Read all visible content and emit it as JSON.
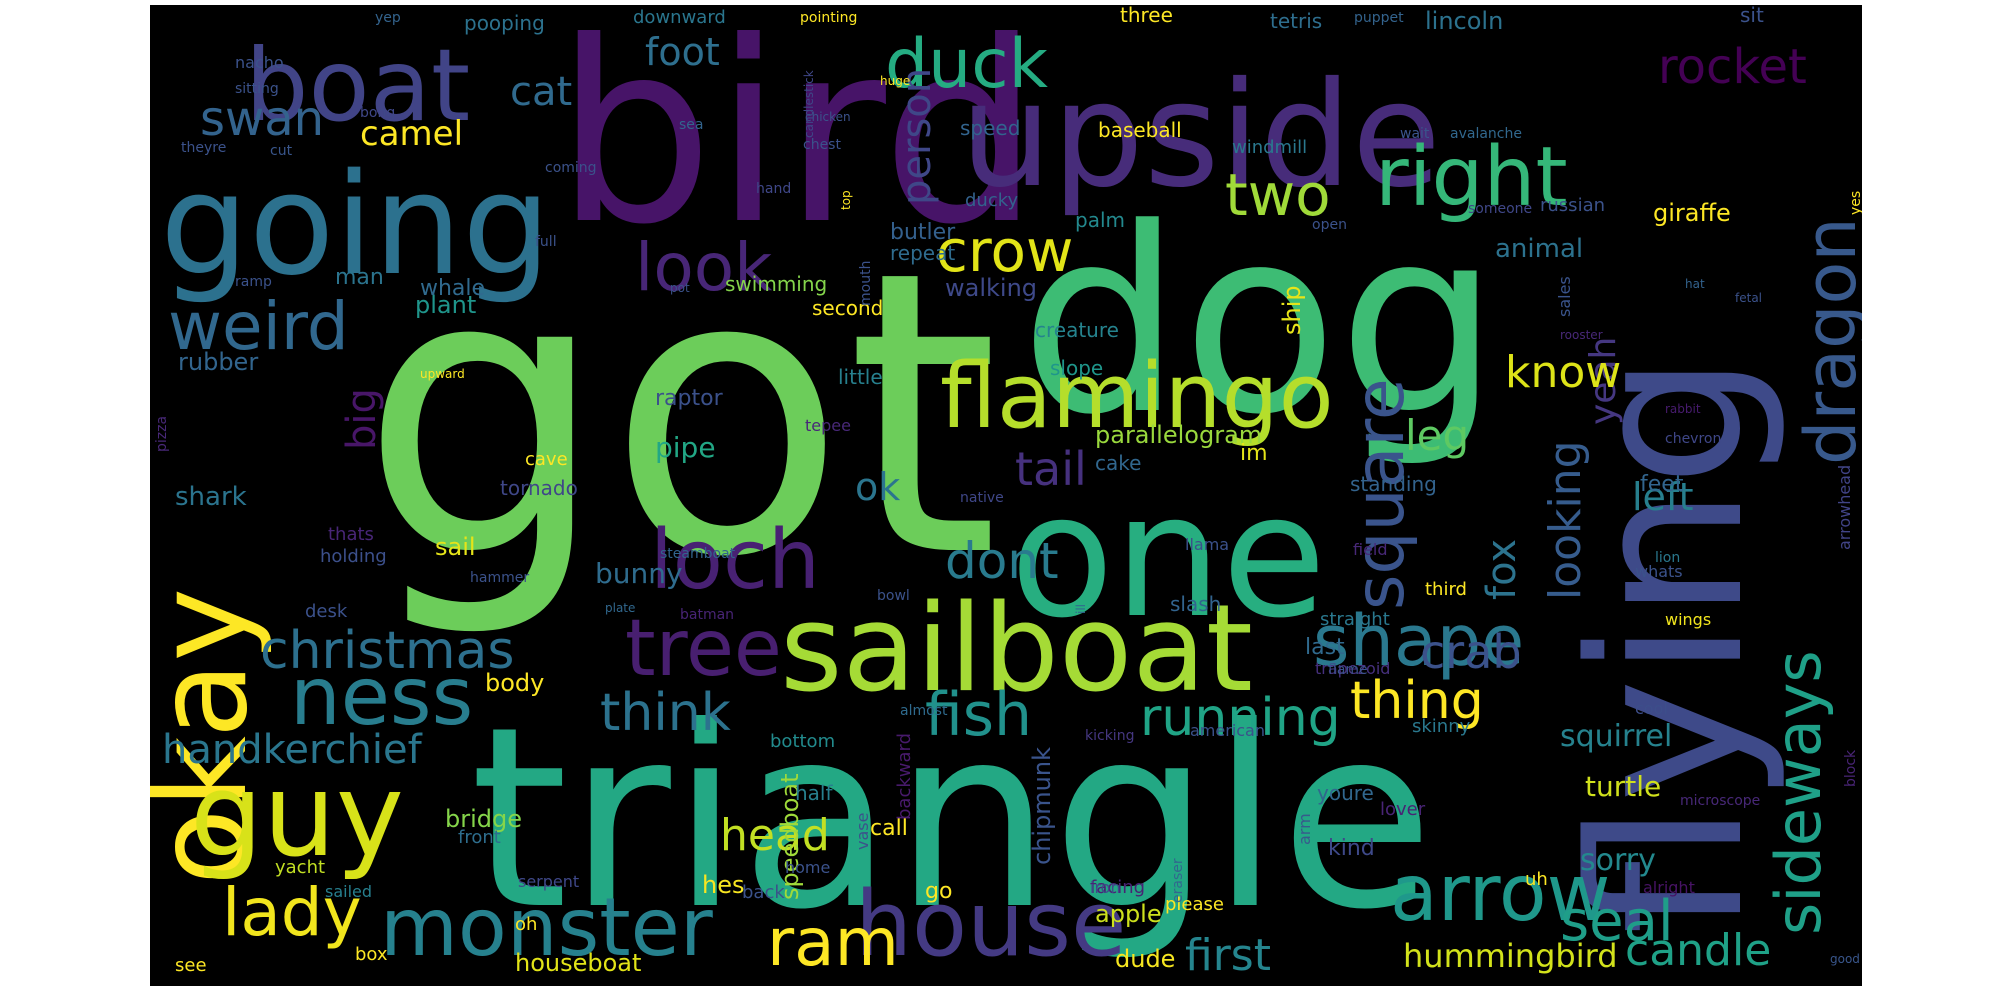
{
  "wordcloud": {
    "words": [
      {
        "text": "got",
        "color": "#6ccd5a"
      },
      {
        "text": "bird",
        "color": "#471468"
      },
      {
        "text": "dog",
        "color": "#3dbc74"
      },
      {
        "text": "triangle",
        "color": "#23a884"
      },
      {
        "text": "flying",
        "color": "#3e4a89"
      },
      {
        "text": "one",
        "color": "#27ae80"
      },
      {
        "text": "upside",
        "color": "#472c7a"
      },
      {
        "text": "going",
        "color": "#2c718e"
      },
      {
        "text": "okay",
        "color": "#fde725"
      },
      {
        "text": "guy",
        "color": "#d8e219"
      },
      {
        "text": "sailboat",
        "color": "#a5db36"
      },
      {
        "text": "boat",
        "color": "#414487"
      },
      {
        "text": "flamingo",
        "color": "#b5de2b"
      },
      {
        "text": "house",
        "color": "#443a83"
      },
      {
        "text": "tree",
        "color": "#481f70"
      },
      {
        "text": "monster",
        "color": "#26818e"
      },
      {
        "text": "arrow",
        "color": "#1f988b"
      },
      {
        "text": "ness",
        "color": "#287d8e"
      },
      {
        "text": "loch",
        "color": "#482173"
      },
      {
        "text": "right",
        "color": "#35b779"
      },
      {
        "text": "duck",
        "color": "#25ac82"
      },
      {
        "text": "shape",
        "color": "#2a788e"
      },
      {
        "text": "weird",
        "color": "#31688e"
      },
      {
        "text": "square",
        "color": "#3a548c"
      },
      {
        "text": "dragon",
        "color": "#38598c"
      },
      {
        "text": "sideways",
        "color": "#1fa088"
      },
      {
        "text": "lady",
        "color": "#f1e51d"
      },
      {
        "text": "look",
        "color": "#482677"
      },
      {
        "text": "crow",
        "color": "#e2e418"
      },
      {
        "text": "christmas",
        "color": "#2d708e"
      },
      {
        "text": "fish",
        "color": "#21918c"
      },
      {
        "text": "running",
        "color": "#20a486"
      },
      {
        "text": "think",
        "color": "#2c728e"
      },
      {
        "text": "two",
        "color": "#a0da39"
      },
      {
        "text": "ram",
        "color": "#fde725"
      },
      {
        "text": "seal",
        "color": "#1f9e89"
      },
      {
        "text": "rocket",
        "color": "#440154"
      },
      {
        "text": "swan",
        "color": "#33638d"
      },
      {
        "text": "handkerchief",
        "color": "#2a768e"
      },
      {
        "text": "thing",
        "color": "#fde725"
      },
      {
        "text": "head",
        "color": "#c2df23"
      },
      {
        "text": "first",
        "color": "#25858e"
      },
      {
        "text": "crab",
        "color": "#3b528b"
      },
      {
        "text": "candle",
        "color": "#1fa187"
      },
      {
        "text": "hummingbird",
        "color": "#d2e21b"
      },
      {
        "text": "dont",
        "color": "#297b8e"
      },
      {
        "text": "tail",
        "color": "#46317e"
      },
      {
        "text": "looking",
        "color": "#365c8d"
      },
      {
        "text": "foot",
        "color": "#2e6f8e"
      },
      {
        "text": "cat",
        "color": "#306a8e"
      },
      {
        "text": "camel",
        "color": "#fde725"
      },
      {
        "text": "person",
        "color": "#3f4788"
      },
      {
        "text": "big",
        "color": "#481668"
      },
      {
        "text": "yeah",
        "color": "#453781"
      },
      {
        "text": "fox",
        "color": "#2c738e"
      },
      {
        "text": "leg",
        "color": "#5ec962"
      },
      {
        "text": "know",
        "color": "#dde318"
      },
      {
        "text": "left",
        "color": "#277f8e"
      },
      {
        "text": "ok",
        "color": "#2b758e"
      },
      {
        "text": "sorry",
        "color": "#23898e"
      },
      {
        "text": "squirrel",
        "color": "#26828e"
      },
      {
        "text": "turtle",
        "color": "#d0e11c"
      },
      {
        "text": "bunny",
        "color": "#2f6c8e"
      },
      {
        "text": "rubber",
        "color": "#32658e"
      },
      {
        "text": "shark",
        "color": "#2b748e"
      },
      {
        "text": "sail",
        "color": "#e5e419"
      },
      {
        "text": "pipe",
        "color": "#22a785"
      },
      {
        "text": "raptor",
        "color": "#3b518b"
      },
      {
        "text": "cake",
        "color": "#31678e"
      },
      {
        "text": "parallelogram",
        "color": "#99d83d"
      },
      {
        "text": "animal",
        "color": "#2c728e"
      },
      {
        "text": "giraffe",
        "color": "#fde725"
      },
      {
        "text": "ship",
        "color": "#e7e419"
      },
      {
        "text": "apple",
        "color": "#cde11d"
      },
      {
        "text": "dude",
        "color": "#f6e620"
      },
      {
        "text": "speedboat",
        "color": "#9fda3a"
      },
      {
        "text": "chipmunk",
        "color": "#3a548c"
      },
      {
        "text": "hes",
        "color": "#f8e621"
      },
      {
        "text": "bridge",
        "color": "#85d54a"
      },
      {
        "text": "body",
        "color": "#fde725"
      },
      {
        "text": "houseboat",
        "color": "#e2e418"
      },
      {
        "text": "plant",
        "color": "#1f958b"
      },
      {
        "text": "second",
        "color": "#fde725"
      },
      {
        "text": "man",
        "color": "#2b748e"
      },
      {
        "text": "whale",
        "color": "#306a8e"
      },
      {
        "text": "walking",
        "color": "#3e4989"
      },
      {
        "text": "swimming",
        "color": "#84d44b"
      },
      {
        "text": "creature",
        "color": "#25838e"
      },
      {
        "text": "slope",
        "color": "#1f968b"
      },
      {
        "text": "little",
        "color": "#27808e"
      },
      {
        "text": "palm",
        "color": "#23898e"
      },
      {
        "text": "butler",
        "color": "#34608d"
      },
      {
        "text": "repeat",
        "color": "#2f6c8e"
      },
      {
        "text": "ducky",
        "color": "#33628d"
      },
      {
        "text": "feet",
        "color": "#32658e"
      },
      {
        "text": "third",
        "color": "#fde725"
      },
      {
        "text": "standing",
        "color": "#33638d"
      },
      {
        "text": "im",
        "color": "#e5e419"
      },
      {
        "text": "cave",
        "color": "#fde725"
      },
      {
        "text": "tornado",
        "color": "#3f4788"
      },
      {
        "text": "thats",
        "color": "#482677"
      },
      {
        "text": "holding",
        "color": "#3c508b"
      },
      {
        "text": "desk",
        "color": "#3b518b"
      },
      {
        "text": "bottom",
        "color": "#228b8d"
      },
      {
        "text": "half",
        "color": "#27808e"
      },
      {
        "text": "youre",
        "color": "#31678e"
      },
      {
        "text": "kind",
        "color": "#3e4989"
      },
      {
        "text": "last",
        "color": "#306a8e"
      },
      {
        "text": "uh",
        "color": "#fde725"
      },
      {
        "text": "call",
        "color": "#fde725"
      },
      {
        "text": "go",
        "color": "#fde725"
      },
      {
        "text": "facing",
        "color": "#482374"
      },
      {
        "text": "please",
        "color": "#fde725"
      },
      {
        "text": "oh",
        "color": "#fde725"
      },
      {
        "text": "box",
        "color": "#fde725"
      },
      {
        "text": "see",
        "color": "#fde725"
      },
      {
        "text": "front",
        "color": "#2e6e8e"
      },
      {
        "text": "yacht",
        "color": "#c2df23"
      },
      {
        "text": "serpent",
        "color": "#3f4889"
      },
      {
        "text": "sailed",
        "color": "#277f8e"
      },
      {
        "text": "back",
        "color": "#3b528b"
      },
      {
        "text": "home",
        "color": "#3b528b"
      },
      {
        "text": "iron",
        "color": "#3f4889"
      },
      {
        "text": "lover",
        "color": "#482475"
      },
      {
        "text": "arm",
        "color": "#375a8c"
      },
      {
        "text": "eraser",
        "color": "#31688e"
      },
      {
        "text": "backward",
        "color": "#481a6c"
      },
      {
        "text": "vase",
        "color": "#3b528b"
      },
      {
        "text": "kicking",
        "color": "#453781"
      },
      {
        "text": "american",
        "color": "#3b518b"
      },
      {
        "text": "almost",
        "color": "#2f6b8e"
      },
      {
        "text": "cool",
        "color": "#3d4e8a"
      },
      {
        "text": "skinny",
        "color": "#2a788e"
      },
      {
        "text": "trapezoid",
        "color": "#46307e"
      },
      {
        "text": "flame",
        "color": "#3b528b"
      },
      {
        "text": "straight",
        "color": "#2a788e"
      },
      {
        "text": "wings",
        "color": "#f1e51d"
      },
      {
        "text": "whats",
        "color": "#3b528b"
      },
      {
        "text": "alright",
        "color": "#471365"
      },
      {
        "text": "microscope",
        "color": "#482878"
      },
      {
        "text": "block",
        "color": "#482475"
      },
      {
        "text": "good",
        "color": "#39568c"
      },
      {
        "text": "slash",
        "color": "#32648e"
      },
      {
        "text": "llama",
        "color": "#3b518b"
      },
      {
        "text": "field",
        "color": "#482878"
      },
      {
        "text": "lion",
        "color": "#2a788e"
      },
      {
        "text": "arrowhead",
        "color": "#414487"
      },
      {
        "text": "chevron",
        "color": "#3f4788"
      },
      {
        "text": "rabbit",
        "color": "#471b6e"
      },
      {
        "text": "rooster",
        "color": "#482878"
      },
      {
        "text": "sales",
        "color": "#3a548c"
      },
      {
        "text": "fetal",
        "color": "#3b528b"
      },
      {
        "text": "hat",
        "color": "#33628d"
      },
      {
        "text": "speed",
        "color": "#32648e"
      },
      {
        "text": "baseball",
        "color": "#fde725"
      },
      {
        "text": "windmill",
        "color": "#2a788e"
      },
      {
        "text": "russian",
        "color": "#3b528b"
      },
      {
        "text": "someone",
        "color": "#3f4788"
      },
      {
        "text": "open",
        "color": "#3b528b"
      },
      {
        "text": "yes",
        "color": "#fde725"
      },
      {
        "text": "wait",
        "color": "#3a548c"
      },
      {
        "text": "avalanche",
        "color": "#31688e"
      },
      {
        "text": "three",
        "color": "#fde725"
      },
      {
        "text": "tetris",
        "color": "#2e6e8e"
      },
      {
        "text": "lincoln",
        "color": "#2c728e"
      },
      {
        "text": "sit",
        "color": "#3b528b"
      },
      {
        "text": "puppet",
        "color": "#33638d"
      },
      {
        "text": "pointing",
        "color": "#fde725"
      },
      {
        "text": "downward",
        "color": "#2a768e"
      },
      {
        "text": "pooping",
        "color": "#2c728e"
      },
      {
        "text": "yep",
        "color": "#33638d"
      },
      {
        "text": "nacho",
        "color": "#3b528b"
      },
      {
        "text": "sitting",
        "color": "#3b528b"
      },
      {
        "text": "bong",
        "color": "#3f4788"
      },
      {
        "text": "theyre",
        "color": "#3b528b"
      },
      {
        "text": "cut",
        "color": "#39568c"
      },
      {
        "text": "coming",
        "color": "#3b528b"
      },
      {
        "text": "sea",
        "color": "#32648e"
      },
      {
        "text": "hand",
        "color": "#3f4788"
      },
      {
        "text": "chest",
        "color": "#3b528b"
      },
      {
        "text": "candlestick",
        "color": "#3f4788"
      },
      {
        "text": "chicken",
        "color": "#3b528b"
      },
      {
        "text": "huge",
        "color": "#fde725"
      },
      {
        "text": "top",
        "color": "#fde725"
      },
      {
        "text": "full",
        "color": "#3b528b"
      },
      {
        "text": "pot",
        "color": "#3b528b"
      },
      {
        "text": "ramp",
        "color": "#3b528b"
      },
      {
        "text": "mouth",
        "color": "#3b528b"
      },
      {
        "text": "upward",
        "color": "#fde725"
      },
      {
        "text": "pizza",
        "color": "#482878"
      },
      {
        "text": "tepee",
        "color": "#482878"
      },
      {
        "text": "native",
        "color": "#3f4788"
      },
      {
        "text": "plate",
        "color": "#31688e"
      },
      {
        "text": "hammer",
        "color": "#3b528b"
      },
      {
        "text": "steamboat",
        "color": "#32648e"
      },
      {
        "text": "batman",
        "color": "#482475"
      },
      {
        "text": "bowl",
        "color": "#3b528b"
      },
      {
        "text": "ill",
        "color": "#31688e"
      }
    ]
  }
}
